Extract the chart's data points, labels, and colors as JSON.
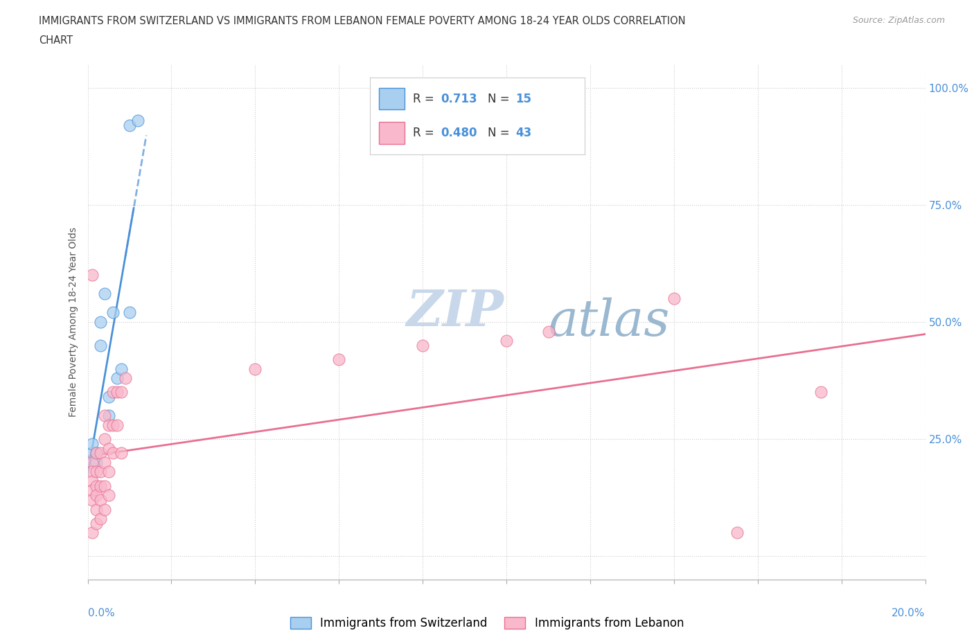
{
  "title_line1": "IMMIGRANTS FROM SWITZERLAND VS IMMIGRANTS FROM LEBANON FEMALE POVERTY AMONG 18-24 YEAR OLDS CORRELATION",
  "title_line2": "CHART",
  "source": "Source: ZipAtlas.com",
  "ylabel": "Female Poverty Among 18-24 Year Olds",
  "xlim": [
    0.0,
    0.2
  ],
  "ylim": [
    -0.05,
    1.05
  ],
  "yticks": [
    0.0,
    0.25,
    0.5,
    0.75,
    1.0
  ],
  "ytick_labels": [
    "",
    "25.0%",
    "50.0%",
    "75.0%",
    "100.0%"
  ],
  "legend1_label": "Immigrants from Switzerland",
  "legend2_label": "Immigrants from Lebanon",
  "R_swiss": 0.713,
  "N_swiss": 15,
  "R_lebanon": 0.48,
  "N_lebanon": 43,
  "swiss_color": "#a8cff0",
  "lebanon_color": "#f9b8cc",
  "swiss_line_color": "#4a90d9",
  "lebanon_line_color": "#e87090",
  "watermark_zip": "ZIP",
  "watermark_atlas": "atlas",
  "swiss_x": [
    0.001,
    0.001,
    0.002,
    0.002,
    0.003,
    0.003,
    0.004,
    0.005,
    0.005,
    0.006,
    0.007,
    0.008,
    0.01,
    0.01,
    0.012
  ],
  "swiss_y": [
    0.22,
    0.24,
    0.2,
    0.22,
    0.45,
    0.5,
    0.56,
    0.3,
    0.34,
    0.52,
    0.38,
    0.4,
    0.52,
    0.92,
    0.93
  ],
  "lebanon_x": [
    0.001,
    0.001,
    0.001,
    0.001,
    0.001,
    0.001,
    0.001,
    0.002,
    0.002,
    0.002,
    0.002,
    0.002,
    0.002,
    0.003,
    0.003,
    0.003,
    0.003,
    0.003,
    0.004,
    0.004,
    0.004,
    0.004,
    0.004,
    0.005,
    0.005,
    0.005,
    0.005,
    0.006,
    0.006,
    0.006,
    0.007,
    0.007,
    0.008,
    0.008,
    0.009,
    0.04,
    0.06,
    0.08,
    0.1,
    0.11,
    0.14,
    0.155,
    0.175
  ],
  "lebanon_y": [
    0.6,
    0.2,
    0.18,
    0.16,
    0.14,
    0.12,
    0.05,
    0.22,
    0.18,
    0.15,
    0.13,
    0.1,
    0.07,
    0.22,
    0.18,
    0.15,
    0.12,
    0.08,
    0.3,
    0.25,
    0.2,
    0.15,
    0.1,
    0.28,
    0.23,
    0.18,
    0.13,
    0.35,
    0.28,
    0.22,
    0.35,
    0.28,
    0.35,
    0.22,
    0.38,
    0.4,
    0.42,
    0.45,
    0.46,
    0.48,
    0.55,
    0.05,
    0.35
  ]
}
